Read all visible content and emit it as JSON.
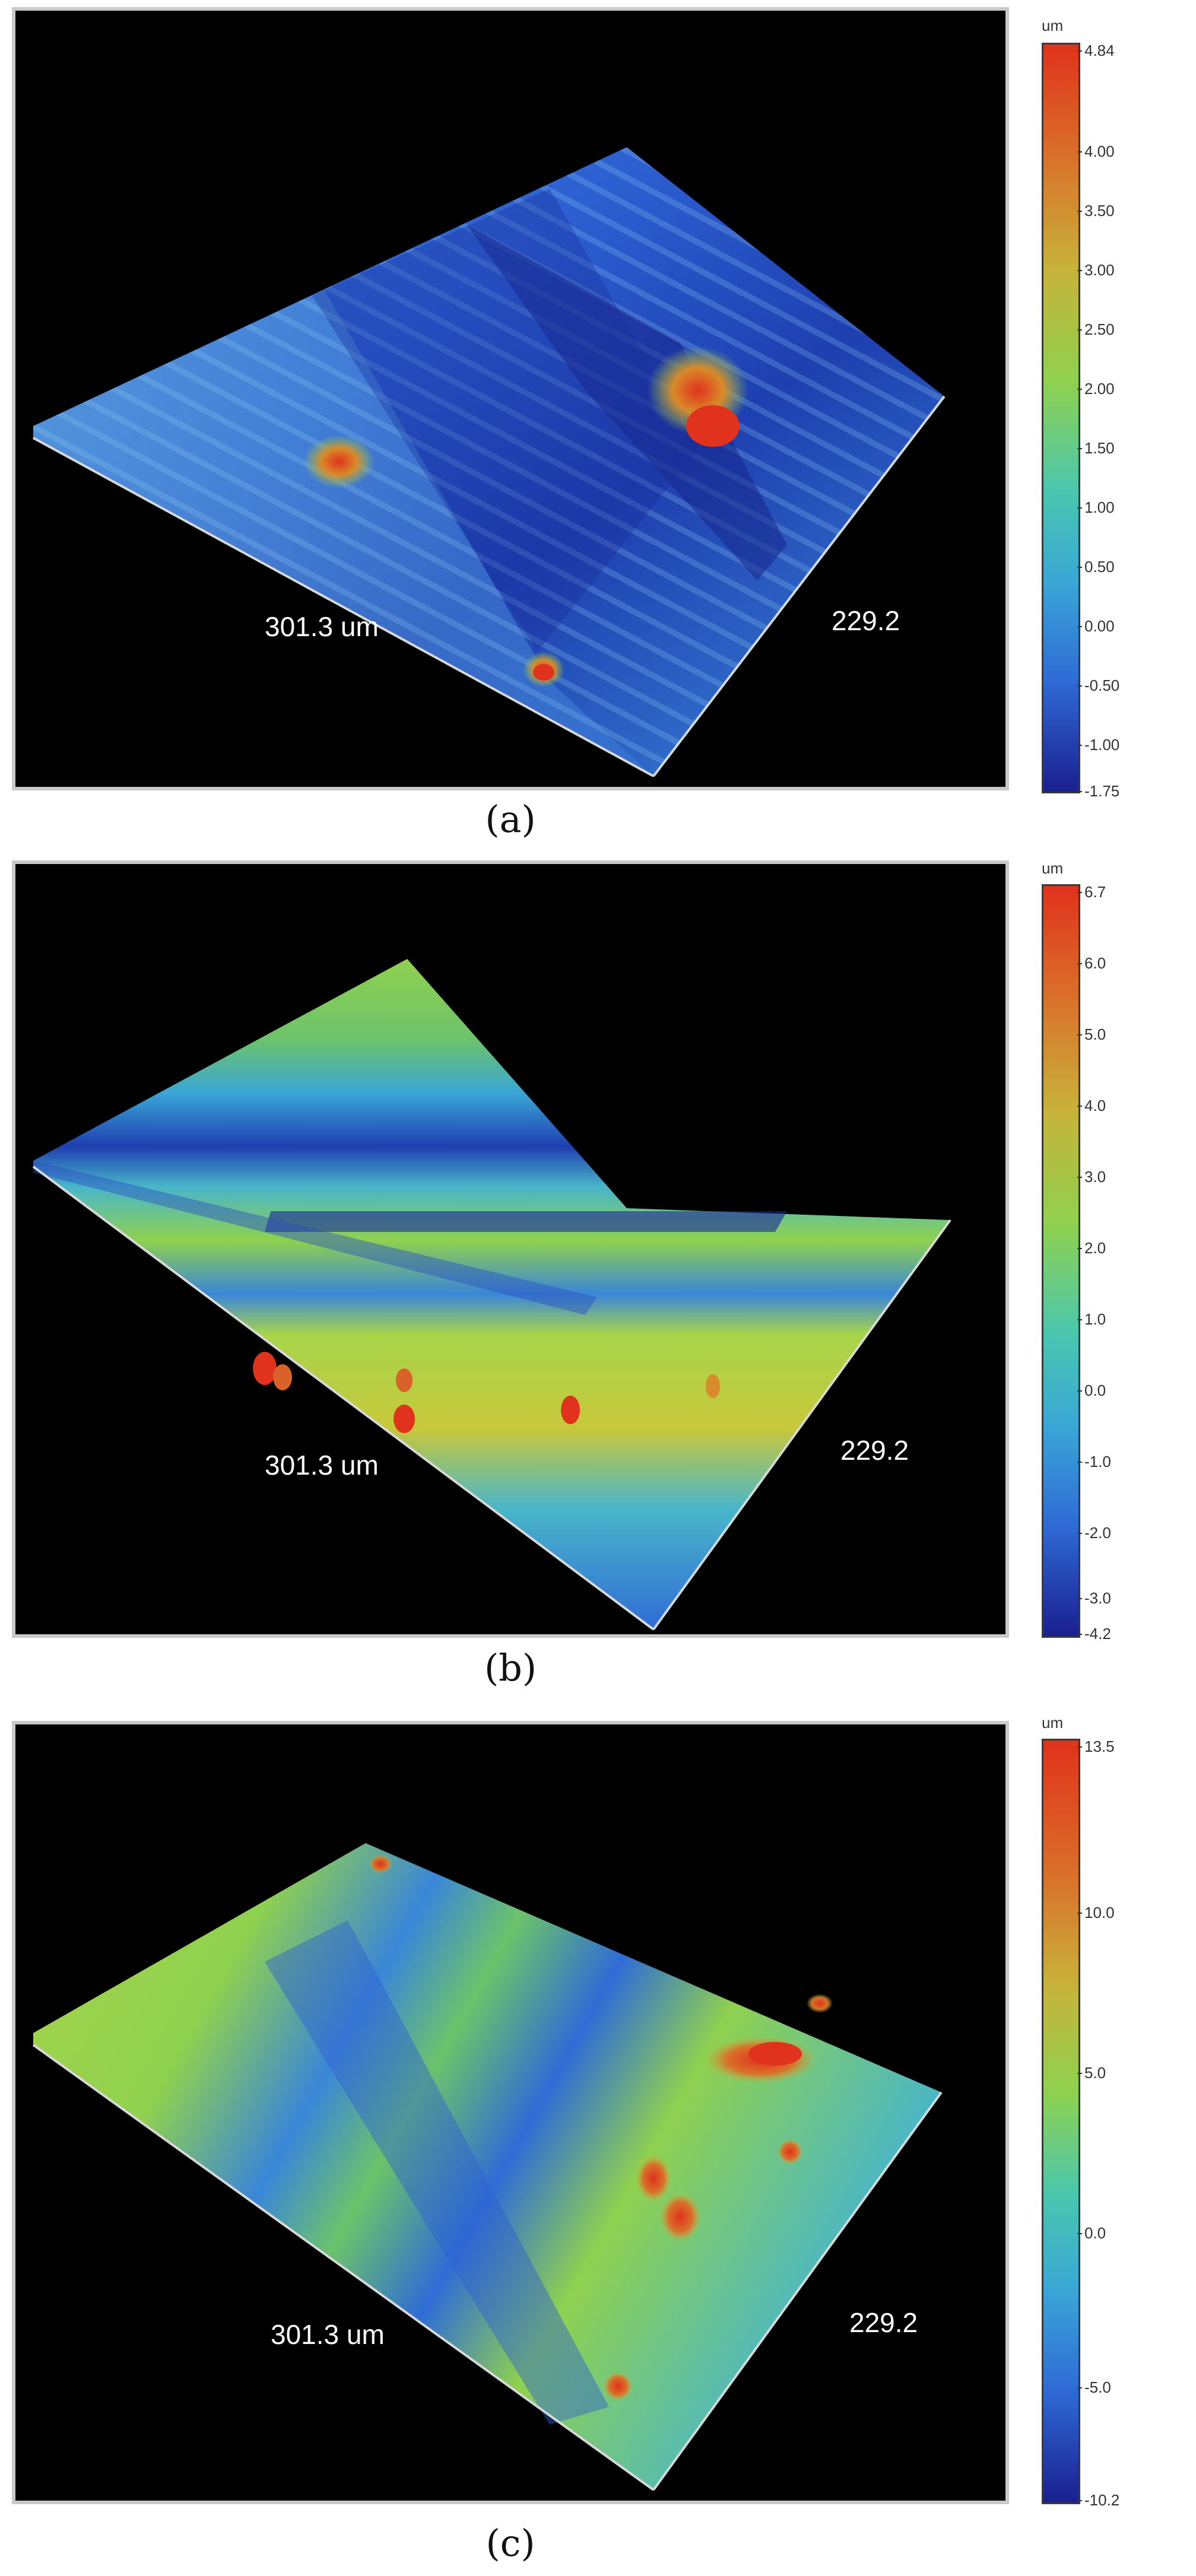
{
  "panels": [
    {
      "caption": "(a)",
      "length_label": "301.3 um",
      "width_label": "229.2",
      "colorbar": {
        "unit": "um",
        "ticks": [
          "4.84",
          "4.00",
          "3.50",
          "3.00",
          "2.50",
          "2.00",
          "1.50",
          "1.00",
          "0.50",
          "0.00",
          "-0.50",
          "-1.00",
          "-1.75"
        ]
      }
    },
    {
      "caption": "(b)",
      "length_label": "301.3 um",
      "width_label": "229.2",
      "colorbar": {
        "unit": "um",
        "ticks": [
          "6.7",
          "6.0",
          "5.0",
          "4.0",
          "3.0",
          "2.0",
          "1.0",
          "0.0",
          "-1.0",
          "-2.0",
          "-3.0",
          "-4.2"
        ]
      }
    },
    {
      "caption": "(c)",
      "length_label": "301.3 um",
      "width_label": "229.2",
      "colorbar": {
        "unit": "um",
        "ticks": [
          "13.5",
          "10.0",
          "5.0",
          "0.0",
          "-5.0",
          "-10.2"
        ]
      }
    }
  ],
  "colors": {
    "background": "#000000",
    "low": "#1a1f8f",
    "mid_low": "#2f6cd6",
    "mid": "#49b6c9",
    "mid_high": "#8fd14f",
    "high": "#d9c531",
    "peak": "#e0321c"
  }
}
